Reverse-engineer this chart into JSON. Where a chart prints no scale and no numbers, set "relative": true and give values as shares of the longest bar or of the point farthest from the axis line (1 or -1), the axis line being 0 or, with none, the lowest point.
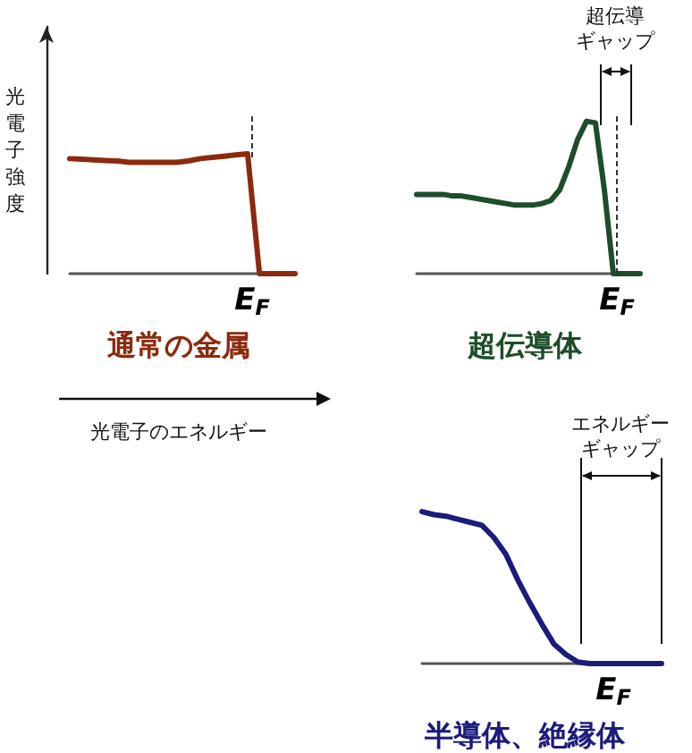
{
  "chart_data": [
    {
      "type": "line",
      "relative": true,
      "title": "通常の金属",
      "ylabel": "光電子強度",
      "xlabel": "光電子のエネルギー",
      "marker": "none",
      "categories": [
        null,
        null,
        null,
        null,
        null,
        null,
        null,
        null,
        null,
        null,
        null,
        null,
        null,
        null,
        null,
        null,
        null,
        null,
        null,
        null
      ],
      "series": [
        {
          "color": "#8c2a0e",
          "values": [
            0.96,
            0.955,
            0.95,
            0.945,
            0.94,
            0.93,
            0.93,
            0.93,
            0.93,
            0.93,
            0.94,
            0.96,
            0.97,
            0.98,
            0.99,
            1.0,
            0,
            0,
            0,
            0
          ]
        }
      ],
      "annotations": [
        "E$_{F}$"
      ]
    },
    {
      "type": "line",
      "relative": true,
      "title": "超伝導体",
      "marker": "none",
      "categories": [
        null,
        null,
        null,
        null,
        null,
        null,
        null,
        null,
        null,
        null,
        null,
        null,
        null,
        null,
        null,
        null,
        null,
        null,
        null,
        null,
        null,
        null,
        null,
        null,
        null,
        null
      ],
      "series": [
        {
          "color": "#1e4d2b",
          "values": [
            0.52,
            0.52,
            0.52,
            0.52,
            0.51,
            0.51,
            0.5,
            0.49,
            0.48,
            0.47,
            0.46,
            0.45,
            0.45,
            0.45,
            0.46,
            0.48,
            0.55,
            0.7,
            0.88,
            1.0,
            0.99,
            0.55,
            0,
            0,
            0,
            0
          ]
        }
      ],
      "annotations": [
        "E$_{F}$",
        "超伝導ギャップ"
      ]
    },
    {
      "type": "line",
      "relative": true,
      "title": "半導体、絶縁体",
      "marker": "none",
      "categories": [
        null,
        null,
        null,
        null,
        null,
        null,
        null,
        null,
        null,
        null,
        null,
        null,
        null,
        null,
        null,
        null,
        null,
        null,
        null,
        null,
        null
      ],
      "series": [
        {
          "color": "#1c1c7a",
          "values": [
            1.0,
            0.98,
            0.97,
            0.95,
            0.93,
            0.91,
            0.83,
            0.72,
            0.55,
            0.4,
            0.26,
            0.13,
            0.06,
            0.01,
            0,
            0,
            0,
            0,
            0,
            0,
            0
          ]
        }
      ],
      "annotations": [
        "エネルギーギャップ",
        "E$_{F}$"
      ]
    }
  ]
}
